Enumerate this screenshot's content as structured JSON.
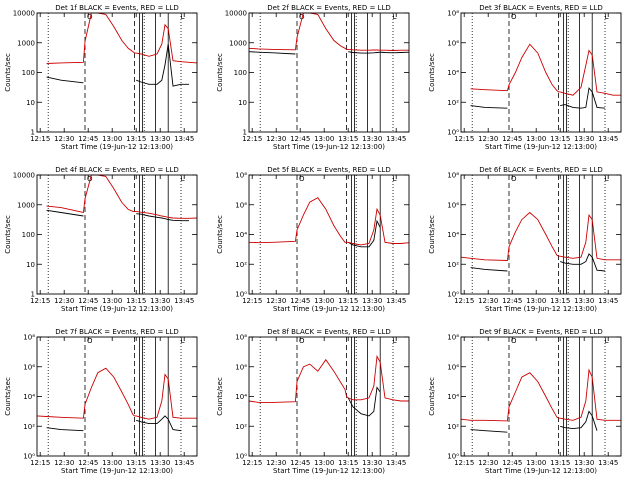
{
  "colors": {
    "events": "#000000",
    "lld": "#cc0000",
    "axes": "#000000"
  },
  "shared": {
    "xlabel": "Start Time (19-Jun-12 12:13:00)",
    "ylabel": "Counts/sec",
    "x_tick_labels": [
      "12:15",
      "12:30",
      "12:45",
      "13:00",
      "13:15",
      "13:30",
      "13:45"
    ],
    "x_tick_minutes": [
      2,
      17,
      32,
      47,
      62,
      77,
      92
    ],
    "xlim_minutes": [
      0,
      100
    ],
    "vertical_markers": [
      {
        "style": "dotted",
        "minute": 7
      },
      {
        "style": "dashed",
        "minute": 30
      },
      {
        "style": "dashed",
        "minute": 61
      },
      {
        "style": "solid",
        "minute": 64
      },
      {
        "style": "solid",
        "minute": 66
      },
      {
        "style": "solid",
        "minute": 74
      },
      {
        "style": "solid",
        "minute": 82
      },
      {
        "style": "dotted",
        "minute": 67
      },
      {
        "style": "dotted",
        "minute": 90
      }
    ],
    "marker_labels": [
      {
        "text": "O",
        "minute": 33
      },
      {
        "text": "L",
        "minute": 91
      }
    ]
  },
  "chart_data": [
    {
      "type": "line",
      "title": "Det 1f BLACK = Events, RED = LLD",
      "ylim": [
        1,
        10000
      ],
      "ytick_labels": [
        "1",
        "10",
        "100",
        "1000",
        "10000"
      ],
      "ytick_values": [
        1,
        10,
        100,
        1000,
        10000
      ],
      "x": [
        0,
        6,
        15,
        29,
        30,
        34,
        38,
        43,
        48,
        53,
        57,
        60,
        61,
        62,
        65,
        70,
        75,
        78,
        80,
        82,
        85,
        90,
        95,
        100
      ],
      "series": [
        {
          "name": "BLACK = Events",
          "values": [
            null,
            70,
            55,
            45,
            null,
            null,
            null,
            null,
            null,
            null,
            null,
            null,
            null,
            55,
            48,
            40,
            40,
            55,
            180,
            900,
            35,
            40,
            40,
            null
          ]
        },
        {
          "name": "RED = LLD",
          "values": [
            null,
            200,
            210,
            220,
            1100,
            10000,
            10000,
            9000,
            3500,
            1200,
            650,
            500,
            450,
            450,
            420,
            350,
            420,
            900,
            4000,
            3000,
            250,
            230,
            220,
            210
          ]
        }
      ]
    },
    {
      "type": "line",
      "title": "Det 2f BLACK = Events, RED = LLD",
      "ylim": [
        1,
        10000
      ],
      "ytick_labels": [
        "1",
        "10",
        "100",
        "1000",
        "10000"
      ],
      "ytick_values": [
        1,
        10,
        100,
        1000,
        10000
      ],
      "x": [
        0,
        6,
        15,
        29,
        30,
        34,
        38,
        43,
        48,
        53,
        57,
        60,
        61,
        62,
        65,
        70,
        75,
        78,
        80,
        82,
        85,
        90,
        95,
        100
      ],
      "series": [
        {
          "name": "BLACK = Events",
          "values": [
            500,
            480,
            460,
            420,
            null,
            null,
            null,
            null,
            null,
            null,
            null,
            null,
            null,
            500,
            470,
            450,
            450,
            460,
            470,
            480,
            470,
            460,
            470,
            480
          ]
        },
        {
          "name": "RED = LLD",
          "values": [
            650,
            620,
            600,
            580,
            1500,
            10000,
            10000,
            9000,
            3000,
            1200,
            800,
            650,
            600,
            600,
            580,
            560,
            560,
            570,
            570,
            560,
            560,
            550,
            560,
            560
          ]
        }
      ]
    },
    {
      "type": "line",
      "title": "Det 3f BLACK = Events, RED = LLD",
      "ylim": [
        1,
        100000000
      ],
      "ytick_labels": [
        "10⁰",
        "10²",
        "10⁴",
        "10⁶",
        "10⁸"
      ],
      "ytick_values": [
        1,
        100,
        10000,
        1000000,
        100000000
      ],
      "x": [
        0,
        6,
        15,
        29,
        30,
        34,
        38,
        43,
        48,
        53,
        57,
        60,
        61,
        62,
        65,
        70,
        75,
        78,
        80,
        82,
        85,
        90,
        95,
        100
      ],
      "series": [
        {
          "name": "BLACK = Events",
          "values": [
            null,
            60,
            45,
            40,
            null,
            null,
            null,
            null,
            null,
            null,
            null,
            null,
            null,
            60,
            70,
            45,
            40,
            45,
            900,
            500,
            45,
            40,
            null,
            null
          ]
        },
        {
          "name": "RED = LLD",
          "values": [
            null,
            800,
            700,
            600,
            1500,
            10000,
            100000,
            800000,
            200000,
            10000,
            1500,
            600,
            500,
            500,
            400,
            300,
            1000,
            30000,
            300000,
            150000,
            500,
            400,
            300,
            300
          ]
        }
      ]
    },
    {
      "type": "line",
      "title": "Det 4f BLACK = Events, RED = LLD",
      "ylim": [
        1,
        10000
      ],
      "ytick_labels": [
        "1",
        "10",
        "100",
        "1000",
        "10000"
      ],
      "ytick_values": [
        1,
        10,
        100,
        1000,
        10000
      ],
      "x": [
        0,
        6,
        15,
        29,
        30,
        34,
        38,
        43,
        48,
        53,
        57,
        60,
        61,
        62,
        65,
        70,
        75,
        78,
        80,
        82,
        85,
        90,
        95,
        100
      ],
      "series": [
        {
          "name": "BLACK = Events",
          "values": [
            null,
            650,
            550,
            420,
            null,
            null,
            null,
            null,
            null,
            null,
            null,
            null,
            null,
            500,
            480,
            420,
            380,
            360,
            340,
            320,
            300,
            290,
            290,
            null
          ]
        },
        {
          "name": "RED = LLD",
          "values": [
            null,
            900,
            800,
            550,
            1600,
            10000,
            10000,
            9000,
            3500,
            1200,
            700,
            600,
            600,
            600,
            560,
            520,
            460,
            420,
            400,
            380,
            360,
            350,
            350,
            360
          ]
        }
      ]
    },
    {
      "type": "line",
      "title": "Det 5f BLACK = Events, RED = LLD",
      "ylim": [
        1,
        100000000
      ],
      "ytick_labels": [
        "10⁰",
        "10²",
        "10⁴",
        "10⁶",
        "10⁸"
      ],
      "ytick_values": [
        1,
        100,
        10000,
        1000000,
        100000000
      ],
      "x": [
        0,
        6,
        15,
        29,
        30,
        34,
        38,
        43,
        48,
        53,
        57,
        60,
        61,
        62,
        65,
        70,
        75,
        78,
        80,
        82,
        85,
        90,
        95,
        100
      ],
      "series": [
        {
          "name": "BLACK = Events",
          "values": [
            null,
            null,
            null,
            null,
            null,
            null,
            null,
            null,
            null,
            null,
            null,
            null,
            null,
            3000,
            2000,
            1500,
            1500,
            4000,
            80000,
            30000,
            null,
            null,
            null,
            null
          ]
        },
        {
          "name": "RED = LLD",
          "values": [
            3000,
            2800,
            3000,
            3500,
            20000,
            200000,
            1500000,
            3000000,
            500000,
            40000,
            8000,
            3000,
            3000,
            3000,
            2500,
            2000,
            2500,
            20000,
            500000,
            200000,
            3000,
            2500,
            2500,
            2800
          ]
        }
      ]
    },
    {
      "type": "line",
      "title": "Det 6f BLACK = Events, RED = LLD",
      "ylim": [
        1,
        100000000
      ],
      "ytick_labels": [
        "10⁰",
        "10²",
        "10⁴",
        "10⁶",
        "10⁸"
      ],
      "ytick_values": [
        1,
        100,
        10000,
        1000000,
        100000000
      ],
      "x": [
        0,
        6,
        15,
        29,
        30,
        34,
        38,
        43,
        48,
        53,
        57,
        60,
        61,
        62,
        65,
        70,
        75,
        78,
        80,
        82,
        85,
        90,
        95,
        100
      ],
      "series": [
        {
          "name": "BLACK = Events",
          "values": [
            null,
            60,
            45,
            35,
            null,
            null,
            null,
            null,
            null,
            null,
            null,
            null,
            null,
            150,
            120,
            100,
            100,
            150,
            500,
            300,
            40,
            35,
            null,
            null
          ]
        },
        {
          "name": "RED = LLD",
          "values": [
            300,
            250,
            200,
            180,
            1500,
            15000,
            100000,
            300000,
            100000,
            10000,
            1500,
            400,
            350,
            350,
            300,
            250,
            300,
            3000,
            200000,
            100000,
            250,
            200,
            200,
            200
          ]
        }
      ]
    },
    {
      "type": "line",
      "title": "Det 7f BLACK = Events, RED = LLD",
      "ylim": [
        1,
        100000000
      ],
      "ytick_labels": [
        "10⁰",
        "10²",
        "10⁴",
        "10⁶",
        "10⁸"
      ],
      "ytick_values": [
        1,
        100,
        10000,
        1000000,
        100000000
      ],
      "x": [
        0,
        6,
        15,
        29,
        30,
        34,
        38,
        43,
        48,
        53,
        57,
        60,
        61,
        62,
        65,
        70,
        75,
        78,
        80,
        82,
        85,
        90,
        95,
        100
      ],
      "series": [
        {
          "name": "BLACK = Events",
          "values": [
            null,
            80,
            60,
            50,
            null,
            null,
            null,
            null,
            null,
            null,
            null,
            null,
            null,
            250,
            200,
            150,
            150,
            300,
            500,
            300,
            60,
            50,
            null,
            null
          ]
        },
        {
          "name": "RED = LLD",
          "values": [
            500,
            450,
            400,
            350,
            3000,
            40000,
            400000,
            800000,
            200000,
            20000,
            3000,
            600,
            500,
            500,
            400,
            300,
            400,
            5000,
            300000,
            150000,
            400,
            350,
            350,
            350
          ]
        }
      ]
    },
    {
      "type": "line",
      "title": "Det 8f BLACK = Events, RED = LLD",
      "ylim": [
        1,
        100000000
      ],
      "ytick_labels": [
        "10⁰",
        "10²",
        "10⁴",
        "10⁶",
        "10⁸"
      ],
      "ytick_values": [
        1,
        100,
        10000,
        1000000,
        100000000
      ],
      "x": [
        0,
        6,
        15,
        29,
        30,
        34,
        38,
        43,
        48,
        53,
        57,
        60,
        61,
        62,
        65,
        70,
        75,
        78,
        80,
        82,
        85,
        90,
        95,
        100
      ],
      "series": [
        {
          "name": "BLACK = Events",
          "values": [
            null,
            null,
            null,
            null,
            null,
            null,
            null,
            null,
            null,
            null,
            null,
            null,
            null,
            8000,
            2000,
            700,
            500,
            1000,
            40000,
            20000,
            null,
            null,
            null,
            null
          ]
        },
        {
          "name": "RED = LLD",
          "values": [
            5000,
            4000,
            4000,
            4500,
            100000,
            1000000,
            1500000,
            500000,
            3000000,
            500000,
            100000,
            30000,
            10000,
            8000,
            6000,
            6000,
            8000,
            50000,
            5000000,
            2000000,
            8000,
            6000,
            5000,
            5000
          ]
        }
      ]
    },
    {
      "type": "line",
      "title": "Det 9f BLACK = Events, RED = LLD",
      "ylim": [
        1,
        100000000
      ],
      "ytick_labels": [
        "10⁰",
        "10²",
        "10⁴",
        "10⁶",
        "10⁸"
      ],
      "ytick_values": [
        1,
        100,
        10000,
        1000000,
        100000000
      ],
      "x": [
        0,
        6,
        15,
        29,
        30,
        34,
        38,
        43,
        48,
        53,
        57,
        60,
        61,
        62,
        65,
        70,
        75,
        78,
        80,
        82,
        85,
        90,
        95,
        100
      ],
      "series": [
        {
          "name": "BLACK = Events",
          "values": [
            null,
            60,
            50,
            40,
            null,
            null,
            null,
            null,
            null,
            null,
            null,
            null,
            null,
            100,
            80,
            70,
            80,
            200,
            1000,
            500,
            50,
            null,
            null,
            null
          ]
        },
        {
          "name": "RED = LLD",
          "values": [
            300,
            250,
            250,
            230,
            2000,
            20000,
            200000,
            400000,
            100000,
            10000,
            1500,
            400,
            350,
            350,
            300,
            250,
            400,
            5000,
            600000,
            200000,
            300,
            250,
            250,
            250
          ]
        }
      ]
    }
  ]
}
